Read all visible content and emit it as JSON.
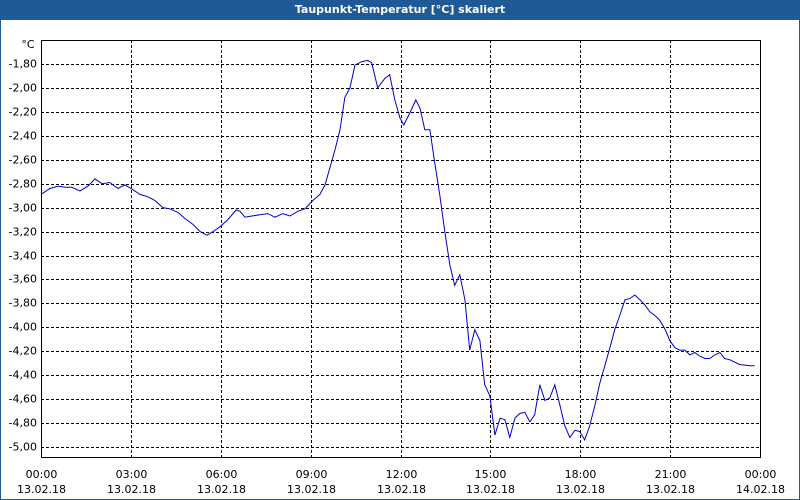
{
  "chart_data": {
    "type": "line",
    "title": "Taupunkt-Temperatur [°C] skaliert",
    "y_unit": "°C",
    "color": "#0000cc",
    "grid": true,
    "xlim": [
      0,
      24
    ],
    "ylim": [
      -5.083,
      -1.6
    ],
    "xticks": [
      {
        "value": 0,
        "label": "00:00",
        "date": "13.02.18"
      },
      {
        "value": 3,
        "label": "03:00",
        "date": "13.02.18"
      },
      {
        "value": 6,
        "label": "06:00",
        "date": "13.02.18"
      },
      {
        "value": 9,
        "label": "09:00",
        "date": "13.02.18"
      },
      {
        "value": 12,
        "label": "12:00",
        "date": "13.02.18"
      },
      {
        "value": 15,
        "label": "15:00",
        "date": "13.02.18"
      },
      {
        "value": 18,
        "label": "18:00",
        "date": "13.02.18"
      },
      {
        "value": 21,
        "label": "21:00",
        "date": "13.02.18"
      },
      {
        "value": 24,
        "label": "00:00",
        "date": "14.02.18"
      }
    ],
    "yticks": [
      {
        "value": -1.8,
        "label": "-1,80"
      },
      {
        "value": -2.0,
        "label": "-2,00"
      },
      {
        "value": -2.2,
        "label": "-2,20"
      },
      {
        "value": -2.4,
        "label": "-2,40"
      },
      {
        "value": -2.6,
        "label": "-2,60"
      },
      {
        "value": -2.8,
        "label": "-2,80"
      },
      {
        "value": -3.0,
        "label": "-3,00"
      },
      {
        "value": -3.2,
        "label": "-3,20"
      },
      {
        "value": -3.4,
        "label": "-3,40"
      },
      {
        "value": -3.6,
        "label": "-3,60"
      },
      {
        "value": -3.8,
        "label": "-3,80"
      },
      {
        "value": -4.0,
        "label": "-4,00"
      },
      {
        "value": -4.2,
        "label": "-4,20"
      },
      {
        "value": -4.4,
        "label": "-4,40"
      },
      {
        "value": -4.6,
        "label": "-4,60"
      },
      {
        "value": -4.8,
        "label": "-4,80"
      },
      {
        "value": -5.0,
        "label": "-5,00"
      }
    ],
    "x": [
      0,
      0.3,
      0.57,
      0.8,
      1.03,
      1.3,
      1.57,
      1.8,
      2.04,
      2.3,
      2.57,
      2.8,
      3.07,
      3.3,
      3.57,
      3.8,
      4.07,
      4.3,
      4.57,
      4.8,
      5.07,
      5.31,
      5.54,
      5.74,
      5.97,
      6.24,
      6.51,
      6.64,
      6.81,
      7.04,
      7.31,
      7.57,
      7.81,
      8.07,
      8.31,
      8.58,
      8.81,
      9.08,
      9.31,
      9.48,
      9.64,
      9.81,
      9.98,
      10.14,
      10.31,
      10.48,
      10.71,
      10.91,
      11.04,
      11.24,
      11.48,
      11.64,
      11.81,
      11.98,
      12.11,
      12.31,
      12.51,
      12.65,
      12.81,
      12.98,
      13.15,
      13.31,
      13.48,
      13.65,
      13.81,
      13.98,
      14.15,
      14.31,
      14.48,
      14.65,
      14.81,
      14.98,
      15.15,
      15.32,
      15.48,
      15.65,
      15.82,
      15.98,
      16.15,
      16.32,
      16.48,
      16.65,
      16.82,
      16.98,
      17.15,
      17.32,
      17.48,
      17.65,
      17.82,
      17.98,
      18.15,
      18.32,
      18.49,
      18.65,
      18.82,
      18.99,
      19.15,
      19.32,
      19.49,
      19.65,
      19.82,
      19.99,
      20.15,
      20.32,
      20.49,
      20.65,
      20.82,
      20.99,
      21.16,
      21.32,
      21.49,
      21.66,
      21.82,
      21.99,
      22.16,
      22.32,
      22.49,
      22.66,
      22.82,
      22.99,
      23.32,
      23.66,
      23.82
    ],
    "values": [
      -2.89,
      -2.84,
      -2.82,
      -2.83,
      -2.83,
      -2.86,
      -2.82,
      -2.76,
      -2.8,
      -2.79,
      -2.84,
      -2.81,
      -2.85,
      -2.89,
      -2.91,
      -2.94,
      -3.0,
      -3.01,
      -3.04,
      -3.09,
      -3.14,
      -3.2,
      -3.23,
      -3.2,
      -3.16,
      -3.1,
      -3.02,
      -3.03,
      -3.08,
      -3.07,
      -3.06,
      -3.05,
      -3.08,
      -3.05,
      -3.07,
      -3.03,
      -3.01,
      -2.94,
      -2.89,
      -2.81,
      -2.67,
      -2.52,
      -2.35,
      -2.08,
      -2.0,
      -1.81,
      -1.78,
      -1.77,
      -1.79,
      -2.0,
      -1.92,
      -1.89,
      -2.1,
      -2.25,
      -2.31,
      -2.21,
      -2.1,
      -2.17,
      -2.35,
      -2.35,
      -2.64,
      -2.89,
      -3.2,
      -3.48,
      -3.65,
      -3.56,
      -3.77,
      -4.19,
      -4.02,
      -4.11,
      -4.48,
      -4.57,
      -4.9,
      -4.76,
      -4.77,
      -4.92,
      -4.76,
      -4.72,
      -4.71,
      -4.79,
      -4.73,
      -4.48,
      -4.61,
      -4.59,
      -4.48,
      -4.65,
      -4.82,
      -4.92,
      -4.86,
      -4.87,
      -4.94,
      -4.82,
      -4.65,
      -4.47,
      -4.32,
      -4.17,
      -4.02,
      -3.9,
      -3.77,
      -3.76,
      -3.73,
      -3.77,
      -3.81,
      -3.87,
      -3.9,
      -3.94,
      -4.01,
      -4.11,
      -4.17,
      -4.19,
      -4.19,
      -4.23,
      -4.21,
      -4.24,
      -4.26,
      -4.26,
      -4.23,
      -4.21,
      -4.26,
      -4.27,
      -4.31,
      -4.32,
      -4.32
    ]
  }
}
